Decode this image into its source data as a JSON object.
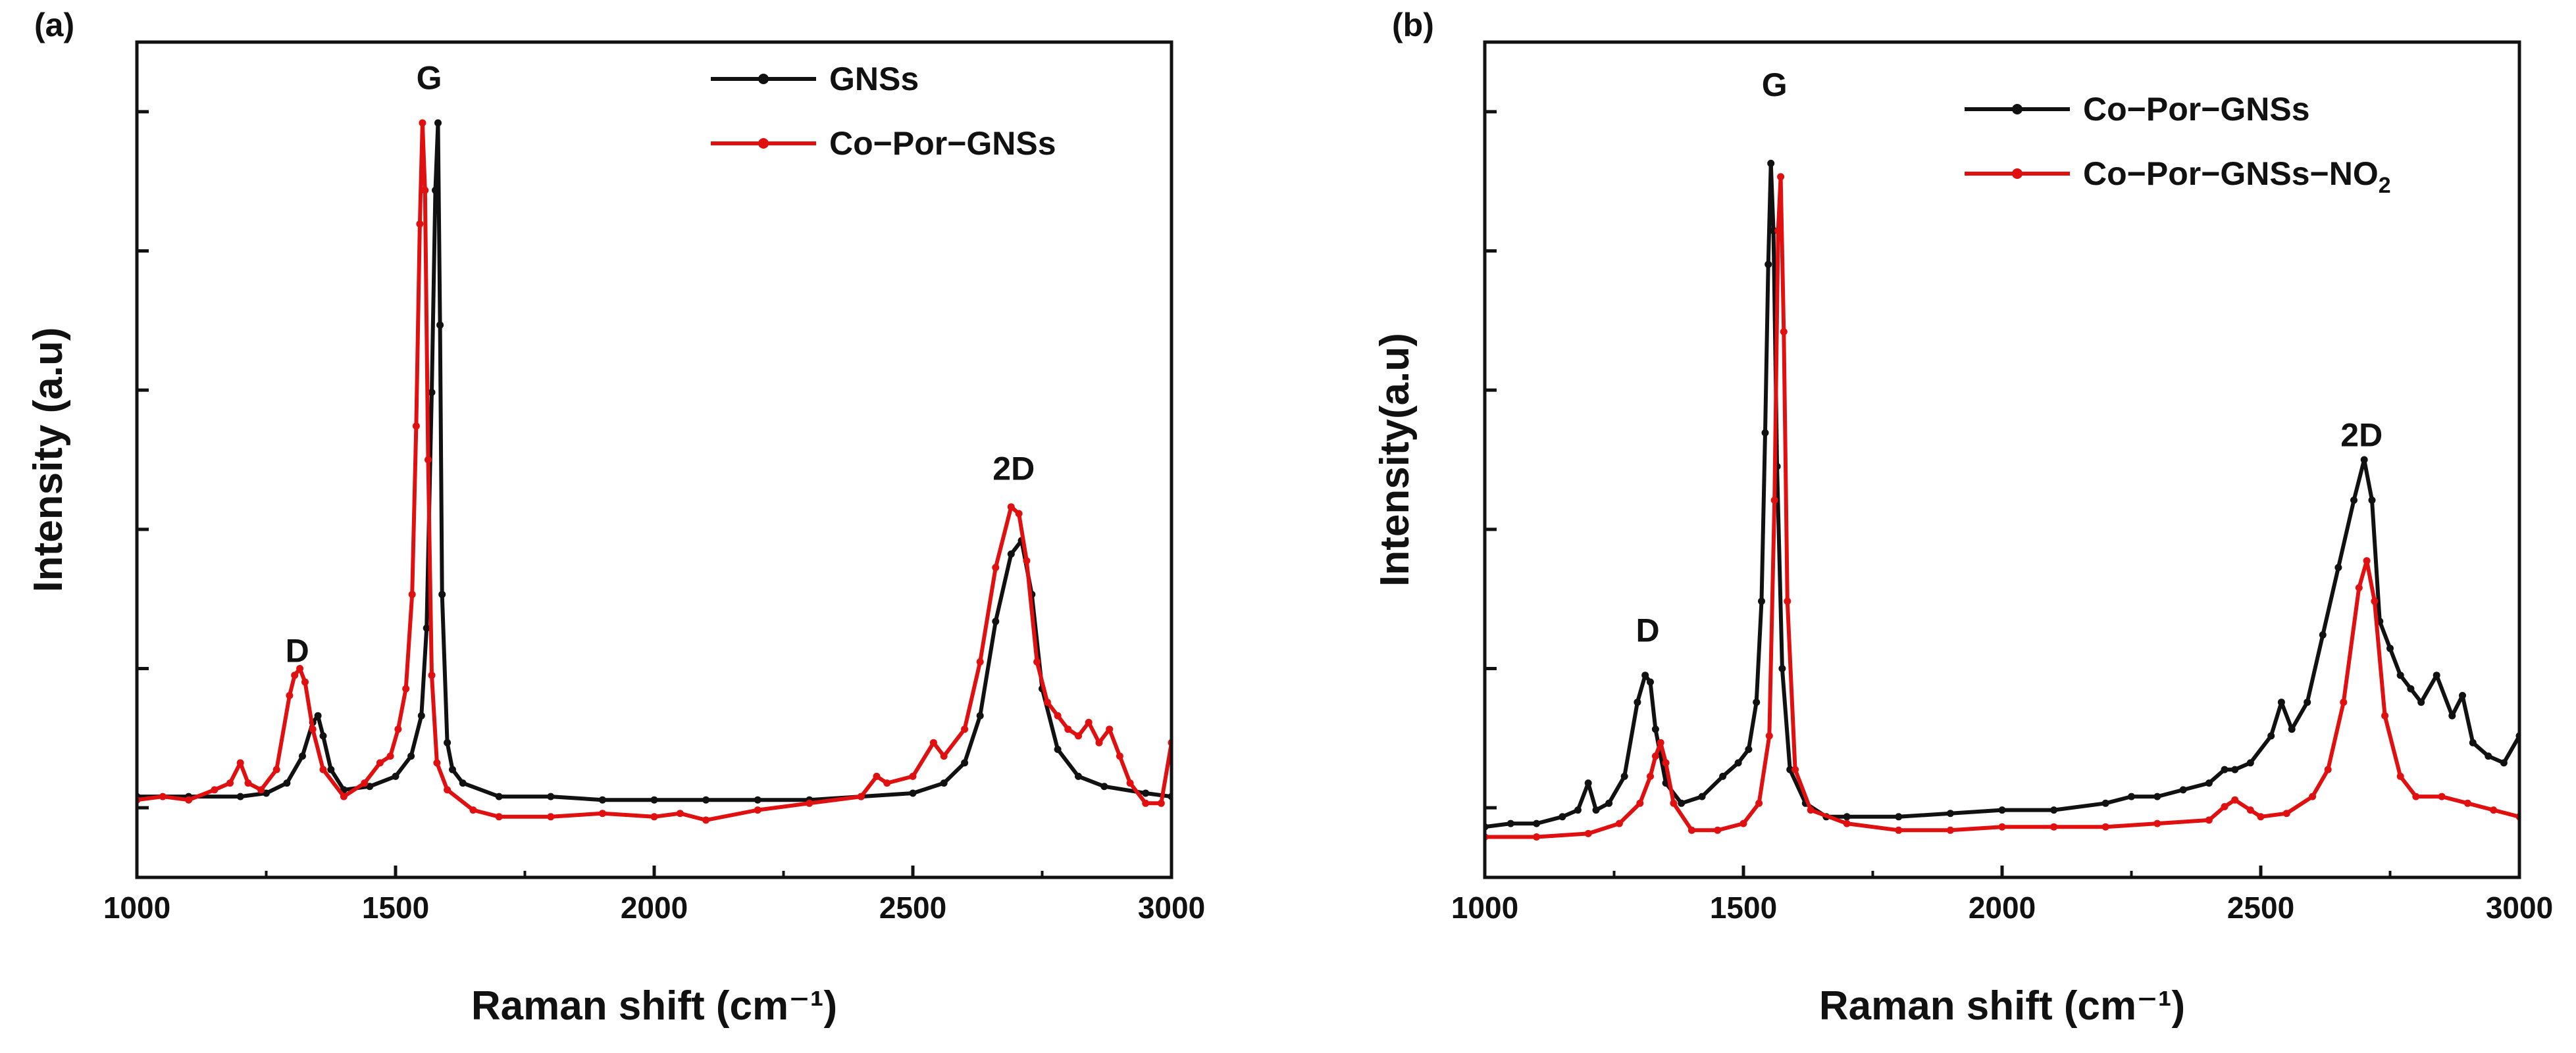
{
  "chart_data": [
    {
      "type": "line",
      "panel_label": "(a)",
      "xlabel": "Raman shift (cm⁻¹)",
      "ylabel": "Intensity (a.u)",
      "xlim": [
        1000,
        3000
      ],
      "ylim": [
        -0.12,
        1.12
      ],
      "xticks": [
        "1000",
        "1500",
        "2000",
        "2500",
        "3000"
      ],
      "y_minor_ticks": true,
      "legend_position": "top-right",
      "peak_labels": [
        {
          "text": "D",
          "x": 1310,
          "y": 0.2
        },
        {
          "text": "G",
          "x": 1565,
          "y": 1.05
        },
        {
          "text": "2D",
          "x": 2695,
          "y": 0.47
        }
      ],
      "series": [
        {
          "name": "GNSs",
          "color": "#111111",
          "x": [
            1000,
            1100,
            1200,
            1250,
            1290,
            1320,
            1340,
            1350,
            1360,
            1375,
            1400,
            1450,
            1500,
            1530,
            1550,
            1560,
            1570,
            1577,
            1582,
            1586,
            1590,
            1600,
            1610,
            1630,
            1700,
            1800,
            1900,
            2000,
            2100,
            2200,
            2300,
            2400,
            2500,
            2560,
            2600,
            2630,
            2660,
            2690,
            2710,
            2730,
            2750,
            2780,
            2820,
            2870,
            2950,
            3000
          ],
          "y": [
            0.0,
            0.0,
            0.0,
            0.005,
            0.02,
            0.06,
            0.11,
            0.12,
            0.09,
            0.04,
            0.01,
            0.015,
            0.03,
            0.06,
            0.12,
            0.25,
            0.6,
            0.9,
            1.0,
            0.7,
            0.3,
            0.08,
            0.04,
            0.02,
            0.0,
            0.0,
            -0.005,
            -0.005,
            -0.005,
            -0.005,
            -0.005,
            0.0,
            0.005,
            0.02,
            0.05,
            0.12,
            0.26,
            0.36,
            0.38,
            0.3,
            0.16,
            0.07,
            0.03,
            0.015,
            0.005,
            0.0
          ]
        },
        {
          "name": "Co−Por−GNSs",
          "color": "#e01010",
          "x": [
            1000,
            1050,
            1100,
            1150,
            1180,
            1200,
            1215,
            1240,
            1270,
            1295,
            1305,
            1315,
            1325,
            1340,
            1360,
            1400,
            1440,
            1470,
            1490,
            1505,
            1520,
            1532,
            1540,
            1547,
            1552,
            1557,
            1563,
            1570,
            1580,
            1600,
            1650,
            1700,
            1800,
            1900,
            2000,
            2050,
            2100,
            2200,
            2300,
            2400,
            2430,
            2450,
            2500,
            2540,
            2560,
            2600,
            2630,
            2660,
            2690,
            2705,
            2720,
            2740,
            2760,
            2780,
            2800,
            2820,
            2840,
            2860,
            2880,
            2900,
            2920,
            2950,
            2980,
            3000
          ],
          "y": [
            -0.005,
            0.0,
            -0.005,
            0.01,
            0.02,
            0.05,
            0.02,
            0.01,
            0.04,
            0.15,
            0.18,
            0.19,
            0.17,
            0.1,
            0.04,
            0.0,
            0.02,
            0.05,
            0.06,
            0.1,
            0.16,
            0.3,
            0.55,
            0.85,
            1.0,
            0.9,
            0.5,
            0.18,
            0.05,
            0.01,
            -0.02,
            -0.03,
            -0.03,
            -0.025,
            -0.03,
            -0.025,
            -0.035,
            -0.02,
            -0.01,
            0.0,
            0.03,
            0.02,
            0.03,
            0.08,
            0.06,
            0.1,
            0.2,
            0.34,
            0.43,
            0.42,
            0.35,
            0.2,
            0.14,
            0.12,
            0.1,
            0.09,
            0.11,
            0.08,
            0.1,
            0.06,
            0.02,
            -0.01,
            -0.01,
            0.08
          ]
        }
      ]
    },
    {
      "type": "line",
      "panel_label": "(b)",
      "xlabel": "Raman shift (cm⁻¹)",
      "ylabel": "Intensity(a.u)",
      "xlim": [
        1000,
        3000
      ],
      "ylim": [
        -0.06,
        1.18
      ],
      "xticks": [
        "1000",
        "1500",
        "2000",
        "2500",
        "3000"
      ],
      "y_minor_ticks": true,
      "legend_position": "top-right",
      "peak_labels": [
        {
          "text": "D",
          "x": 1315,
          "y": 0.29
        },
        {
          "text": "G",
          "x": 1560,
          "y": 1.1
        },
        {
          "text": "2D",
          "x": 2695,
          "y": 0.58
        }
      ],
      "series": [
        {
          "name": "Co−Por−GNSs",
          "color": "#111111",
          "x": [
            1000,
            1050,
            1100,
            1150,
            1180,
            1200,
            1215,
            1240,
            1270,
            1295,
            1310,
            1320,
            1330,
            1350,
            1380,
            1420,
            1460,
            1490,
            1510,
            1525,
            1535,
            1542,
            1548,
            1553,
            1558,
            1565,
            1575,
            1590,
            1620,
            1660,
            1700,
            1800,
            1900,
            2000,
            2100,
            2200,
            2250,
            2300,
            2350,
            2400,
            2430,
            2450,
            2480,
            2520,
            2540,
            2560,
            2590,
            2620,
            2650,
            2680,
            2700,
            2715,
            2730,
            2750,
            2770,
            2790,
            2810,
            2840,
            2870,
            2890,
            2910,
            2940,
            2970,
            3000
          ],
          "y": [
            0.015,
            0.02,
            0.02,
            0.03,
            0.04,
            0.08,
            0.04,
            0.05,
            0.09,
            0.2,
            0.24,
            0.23,
            0.16,
            0.08,
            0.05,
            0.06,
            0.09,
            0.11,
            0.13,
            0.2,
            0.35,
            0.6,
            0.85,
            1.0,
            0.9,
            0.55,
            0.25,
            0.1,
            0.05,
            0.03,
            0.03,
            0.03,
            0.035,
            0.04,
            0.04,
            0.05,
            0.06,
            0.06,
            0.07,
            0.08,
            0.1,
            0.1,
            0.11,
            0.15,
            0.2,
            0.16,
            0.2,
            0.3,
            0.4,
            0.5,
            0.56,
            0.5,
            0.32,
            0.28,
            0.24,
            0.22,
            0.2,
            0.24,
            0.18,
            0.21,
            0.14,
            0.12,
            0.11,
            0.15
          ]
        },
        {
          "name": "Co−Por−GNSs−NO",
          "name_subscript": "2",
          "color": "#e01010",
          "x": [
            1000,
            1100,
            1200,
            1260,
            1300,
            1320,
            1330,
            1340,
            1350,
            1365,
            1400,
            1450,
            1500,
            1530,
            1550,
            1560,
            1567,
            1572,
            1578,
            1585,
            1600,
            1630,
            1700,
            1800,
            1900,
            2000,
            2100,
            2200,
            2300,
            2400,
            2430,
            2450,
            2480,
            2500,
            2550,
            2600,
            2630,
            2660,
            2690,
            2705,
            2720,
            2740,
            2770,
            2800,
            2850,
            2900,
            2950,
            3000
          ],
          "y": [
            0.0,
            0.0,
            0.005,
            0.02,
            0.05,
            0.09,
            0.12,
            0.14,
            0.11,
            0.05,
            0.01,
            0.01,
            0.02,
            0.05,
            0.15,
            0.5,
            0.9,
            0.98,
            0.75,
            0.35,
            0.1,
            0.04,
            0.02,
            0.01,
            0.01,
            0.015,
            0.015,
            0.015,
            0.02,
            0.025,
            0.045,
            0.055,
            0.04,
            0.03,
            0.035,
            0.06,
            0.1,
            0.2,
            0.37,
            0.41,
            0.35,
            0.18,
            0.09,
            0.06,
            0.06,
            0.05,
            0.04,
            0.03
          ]
        }
      ]
    }
  ]
}
